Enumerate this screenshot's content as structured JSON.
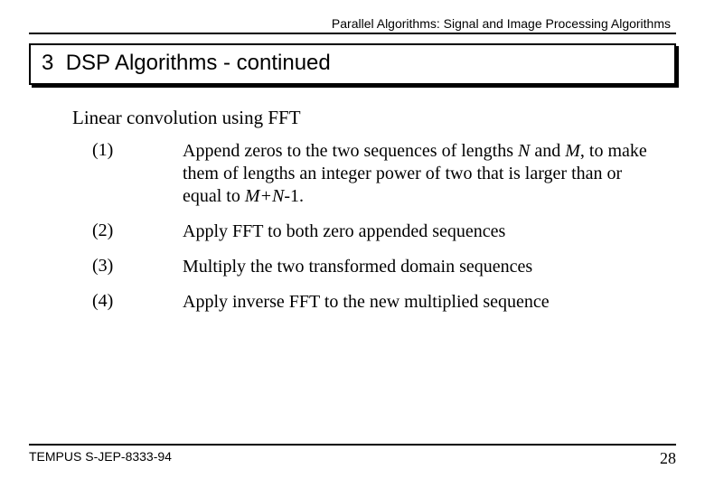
{
  "header": {
    "running_title": "Parallel Algorithms:  Signal and Image Processing Algorithms"
  },
  "title": {
    "number": "3",
    "text": "DSP Algorithms - continued"
  },
  "subheading": "Linear convolution using FFT",
  "steps": [
    {
      "num": "(1)",
      "segments": [
        {
          "t": "Append zeros to the two sequences of  lengths "
        },
        {
          "t": "N",
          "i": true
        },
        {
          "t": " and "
        },
        {
          "t": "M",
          "i": true
        },
        {
          "t": ", to make them of lengths an integer power of two that is larger than or equal to "
        },
        {
          "t": "M+N",
          "i": true
        },
        {
          "t": "-1."
        }
      ]
    },
    {
      "num": "(2)",
      "segments": [
        {
          "t": "Apply FFT to both zero appended sequences"
        }
      ]
    },
    {
      "num": "(3)",
      "segments": [
        {
          "t": "Multiply the two transformed domain sequences"
        }
      ]
    },
    {
      "num": "(4)",
      "segments": [
        {
          "t": "Apply inverse FFT to the new multiplied sequence"
        }
      ]
    }
  ],
  "footer": {
    "left": "TEMPUS S-JEP-8333-94",
    "page": "28"
  },
  "colors": {
    "text": "#000000",
    "background": "#ffffff",
    "rule": "#000000"
  },
  "fonts": {
    "serif": "Times New Roman",
    "sans": "Arial",
    "title_size_pt": 24,
    "body_size_pt": 20,
    "header_size_pt": 14
  }
}
